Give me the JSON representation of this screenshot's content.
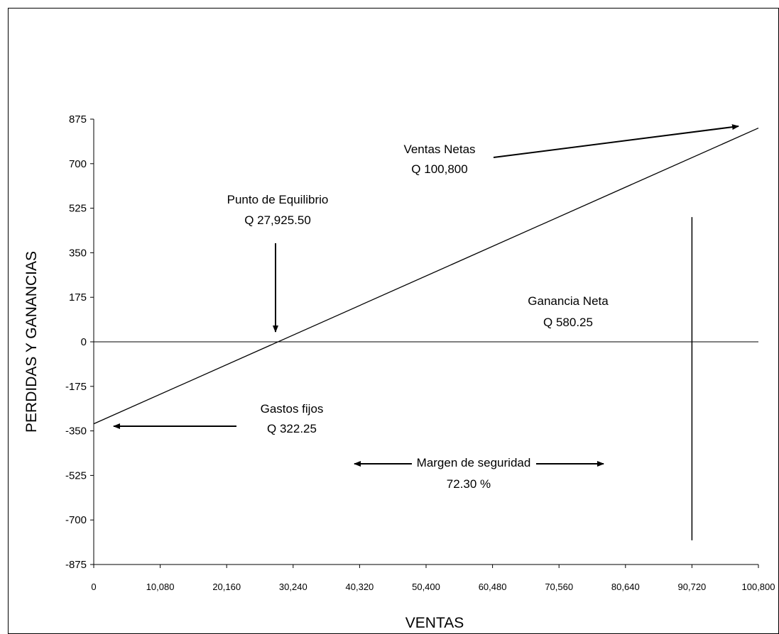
{
  "chart_data": {
    "type": "line",
    "title": "",
    "xlabel": "VENTAS",
    "ylabel": "PERDIDAS Y GANANCIAS",
    "xlim": [
      0,
      100800
    ],
    "ylim": [
      -875,
      875
    ],
    "x_ticks": [
      "0",
      "10,080",
      "20,160",
      "30,240",
      "40,320",
      "50,400",
      "60,480",
      "70,560",
      "80,640",
      "90,720",
      "100,800"
    ],
    "y_ticks": [
      "875",
      "700",
      "525",
      "350",
      "175",
      "0",
      "-175",
      "-350",
      "-525",
      "-700",
      "-875"
    ],
    "grid": false,
    "legend": "none",
    "series": [
      {
        "x": [
          0,
          100800
        ],
        "y": [
          -322.25,
          840
        ]
      }
    ],
    "vertical_marker": {
      "x": 90720,
      "y_range": [
        -780,
        490
      ]
    },
    "annotations": {
      "ventas_netas": [
        "Ventas Netas",
        "Q 100,800"
      ],
      "punto_equilibrio": [
        "Punto de Equilibrio",
        "Q 27,925.50"
      ],
      "ganancia_neta": [
        "Ganancia Neta",
        "Q 580.25"
      ],
      "gastos_fijos": [
        "Gastos fijos",
        "Q 322.25"
      ],
      "margen_seguridad": [
        "Margen de seguridad",
        "72.30 %"
      ]
    }
  }
}
